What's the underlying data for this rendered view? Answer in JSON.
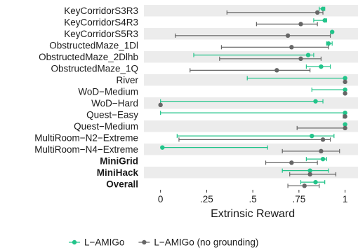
{
  "chart_data": {
    "type": "dot-errorbar",
    "xlabel": "Extrinsic Reward",
    "x_ticks": [
      {
        "value": 0,
        "label": "0"
      },
      {
        "value": 0.25,
        "label": ".25"
      },
      {
        "value": 0.5,
        "label": ".5"
      },
      {
        "value": 0.75,
        "label": ".75"
      },
      {
        "value": 1,
        "label": "1"
      }
    ],
    "xlim": [
      -0.09,
      1.07
    ],
    "grid": "alternating-row-bands",
    "legend_position": "bottom",
    "categories": [
      {
        "label": "KeyCorridorS3R3",
        "bold": false
      },
      {
        "label": "KeyCorridorS4R3",
        "bold": false
      },
      {
        "label": "KeyCorridorS5R3",
        "bold": false
      },
      {
        "label": "ObstructedMaze_1Dl",
        "bold": false
      },
      {
        "label": "ObstructedMaze_2Dlhb",
        "bold": false
      },
      {
        "label": "ObstructedMaze_1Q",
        "bold": false
      },
      {
        "label": "River",
        "bold": false
      },
      {
        "label": "WoD−Medium",
        "bold": false
      },
      {
        "label": "WoD−Hard",
        "bold": false
      },
      {
        "label": "Quest−Easy",
        "bold": false
      },
      {
        "label": "Quest−Medium",
        "bold": false
      },
      {
        "label": "MultiRoom−N2−Extreme",
        "bold": false
      },
      {
        "label": "MultiRoom−N4−Extreme",
        "bold": false
      },
      {
        "label": "MiniGrid",
        "bold": true
      },
      {
        "label": "MiniHack",
        "bold": true
      },
      {
        "label": "Overall",
        "bold": true
      }
    ],
    "series": [
      {
        "name": "L−AMIGo",
        "color": "#22c48a",
        "points": [
          {
            "value": 0.88,
            "low": 0.86,
            "high": 0.89
          },
          {
            "value": 0.89,
            "low": 0.83,
            "high": 0.9
          },
          {
            "value": 0.93,
            "low": 0.93,
            "high": 0.93
          },
          {
            "value": 0.91,
            "low": 0.9,
            "high": 0.93
          },
          {
            "value": 0.8,
            "low": 0.18,
            "high": 0.83
          },
          {
            "value": 0.87,
            "low": 0.79,
            "high": 0.92
          },
          {
            "value": 1.0,
            "low": 0.47,
            "high": 1.0
          },
          {
            "value": 1.0,
            "low": 0.82,
            "high": 1.0
          },
          {
            "value": 0.84,
            "low": 0.0,
            "high": 0.88
          },
          {
            "value": 1.0,
            "low": 0.0,
            "high": 1.0
          },
          {
            "value": 1.0,
            "low": 1.0,
            "high": 1.0
          },
          {
            "value": 0.82,
            "low": 0.09,
            "high": 0.94
          },
          {
            "value": 0.01,
            "low": 0.01,
            "high": 0.58
          },
          {
            "value": 0.88,
            "low": 0.79,
            "high": 0.9
          },
          {
            "value": 0.81,
            "low": 0.66,
            "high": 0.91
          },
          {
            "value": 0.84,
            "low": 0.76,
            "high": 0.89
          }
        ]
      },
      {
        "name": "L−AMIGo (no grounding)",
        "color": "#666666",
        "points": [
          {
            "value": 0.85,
            "low": 0.36,
            "high": 0.88
          },
          {
            "value": 0.76,
            "low": 0.52,
            "high": 0.85
          },
          {
            "value": 0.69,
            "low": 0.08,
            "high": 0.92
          },
          {
            "value": 0.71,
            "low": 0.33,
            "high": 0.91
          },
          {
            "value": 0.76,
            "low": 0.32,
            "high": 0.87
          },
          {
            "value": 0.63,
            "low": 0.16,
            "high": 0.81
          },
          {
            "value": 1.0,
            "low": 1.0,
            "high": 1.0
          },
          {
            "value": 1.0,
            "low": 1.0,
            "high": 1.0
          },
          {
            "value": 0.0,
            "low": 0.0,
            "high": 0.0
          },
          {
            "value": 1.0,
            "low": 0.99,
            "high": 1.0
          },
          {
            "value": 1.0,
            "low": 0.74,
            "high": 1.0
          },
          {
            "value": 0.88,
            "low": 0.1,
            "high": 0.92
          },
          {
            "value": 0.87,
            "low": 0.66,
            "high": 0.97
          },
          {
            "value": 0.71,
            "low": 0.57,
            "high": 0.85
          },
          {
            "value": 0.81,
            "low": 0.7,
            "high": 0.95
          },
          {
            "value": 0.78,
            "low": 0.69,
            "high": 0.86
          }
        ]
      }
    ]
  }
}
